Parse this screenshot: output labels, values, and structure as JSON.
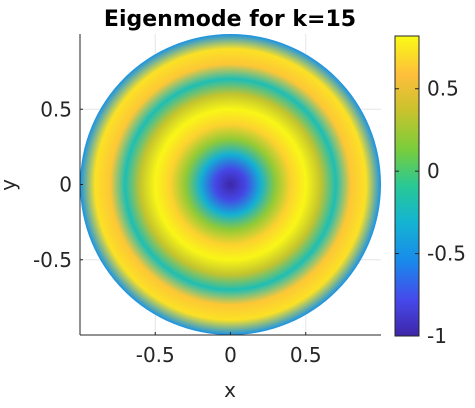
{
  "chart_data": {
    "type": "heatmap",
    "title": "Eigenmode for k=15",
    "xlabel": "x",
    "ylabel": "y",
    "xlim": [
      -1,
      1
    ],
    "ylim": [
      -1,
      1
    ],
    "x_ticks": [
      -0.5,
      0,
      0.5
    ],
    "y_ticks": [
      -0.5,
      0,
      0.5
    ],
    "x_tick_labels": [
      "-0.5",
      "0",
      "0.5"
    ],
    "y_tick_labels": [
      "-0.5",
      "0",
      "0.5"
    ],
    "domain": "unit disk",
    "grid": true,
    "colormap": "parula",
    "colorbar": {
      "range": [
        -1,
        0.82
      ],
      "ticks": [
        -1,
        -0.5,
        0,
        0.5
      ],
      "tick_labels": [
        "-1",
        "-0.5",
        "0",
        "0.5"
      ]
    },
    "radial_profile": {
      "r": [
        0,
        0.1,
        0.2,
        0.3,
        0.4,
        0.5,
        0.6,
        0.7,
        0.8,
        0.9,
        1.0
      ],
      "value": [
        -1.0,
        -0.8,
        -0.33,
        0.2,
        0.66,
        0.8,
        0.35,
        -0.2,
        0.62,
        0.72,
        -0.5
      ]
    }
  }
}
